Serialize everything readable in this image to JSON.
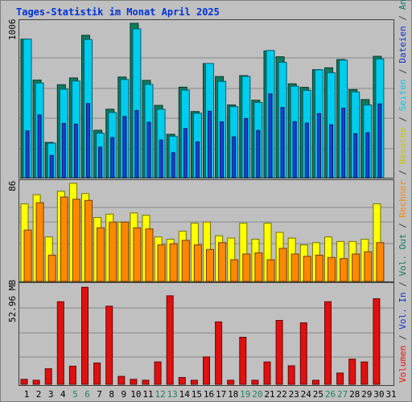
{
  "chart_data": {
    "type": "bar",
    "title": "Tages-Statistik im Monat April 2025",
    "categories": [
      "1",
      "2",
      "3",
      "4",
      "5",
      "6",
      "7",
      "8",
      "9",
      "10",
      "11",
      "12",
      "13",
      "14",
      "15",
      "16",
      "17",
      "18",
      "19",
      "20",
      "21",
      "22",
      "23",
      "24",
      "25",
      "26",
      "27",
      "28",
      "29",
      "30",
      "31"
    ],
    "weekend_days": [
      "5",
      "6",
      "12",
      "13",
      "19",
      "20",
      "26",
      "27"
    ],
    "panels": [
      {
        "name": "top",
        "scale_label": "1006",
        "ylim": [
          0,
          1006
        ],
        "series": [
          {
            "name": "Anfragen",
            "color": "#117a5e",
            "values": [
              903,
              636,
              230,
              606,
              650,
              928,
              309,
              446,
              656,
              1006,
              634,
              471,
              283,
              590,
              431,
              744,
              659,
              474,
              665,
              505,
              826,
              788,
              612,
              589,
              704,
              716,
              770,
              574,
              509,
              791
            ]
          },
          {
            "name": "Dateien",
            "color": "#00ccee",
            "values": [
              903,
              617,
              225,
              577,
              630,
              900,
              290,
              425,
              640,
              970,
              608,
              446,
              270,
              571,
              420,
              744,
              628,
              463,
              660,
              490,
              829,
              752,
              596,
              569,
              703,
              684,
              766,
              559,
              474,
              774
            ]
          },
          {
            "name": "Seiten",
            "color": "#1e3dd4",
            "values": [
              305,
              409,
              145,
              354,
              349,
              483,
              199,
              262,
              399,
              438,
              361,
              245,
              163,
              321,
              233,
              433,
              364,
              266,
              386,
              308,
              547,
              458,
              365,
              356,
              418,
              345,
              453,
              287,
              293,
              481
            ]
          }
        ]
      },
      {
        "name": "middle",
        "scale_label": "86",
        "ylim": [
          0,
          86
        ],
        "series": [
          {
            "name": "Besuche",
            "color": "#ffff00",
            "values": [
              68,
              76,
              39,
              79,
              86,
              77,
              56,
              59,
              52,
              60,
              58,
              39,
              37,
              44,
              51,
              52,
              40,
              38,
              51,
              37,
              51,
              43,
              38,
              32,
              34,
              39,
              35,
              35,
              37,
              68
            ]
          },
          {
            "name": "Rechner",
            "color": "#ff8800",
            "values": [
              45,
              69,
              23,
              74,
              72,
              71,
              47,
              52,
              52,
              47,
              46,
              32,
              33,
              36,
              32,
              28,
              34,
              19,
              24,
              25,
              19,
              29,
              24,
              22,
              23,
              21,
              20,
              24,
              26,
              34
            ]
          }
        ]
      },
      {
        "name": "bottom",
        "scale_label": "52.96 MB",
        "ylim": [
          0,
          52.96
        ],
        "series": [
          {
            "name": "Volumen",
            "color": "#e01010",
            "values": [
              2.7,
              2.2,
              8.4,
              44.6,
              9.8,
              52.4,
              11.5,
              42.2,
              4.3,
              2.7,
              2.2,
              12.1,
              47.8,
              3.7,
              2.2,
              14.8,
              33.7,
              2.2,
              25.4,
              2.2,
              12.1,
              34.5,
              10.0,
              33.2,
              2.2,
              44.6,
              6.1,
              13.6,
              12.1,
              46.2
            ]
          }
        ]
      }
    ],
    "side_legend": [
      {
        "text": "Volumen",
        "color": "#ee1111"
      },
      {
        "text": " / ",
        "color": "#404040"
      },
      {
        "text": "Vol. In",
        "color": "#1133cc"
      },
      {
        "text": " / ",
        "color": "#404040"
      },
      {
        "text": "Vol. Out",
        "color": "#117a5e"
      },
      {
        "text": " / ",
        "color": "#404040"
      },
      {
        "text": "Rechner",
        "color": "#ff8800"
      },
      {
        "text": " / ",
        "color": "#404040"
      },
      {
        "text": "Besuche",
        "color": "#c8c800"
      },
      {
        "text": " / ",
        "color": "#404040"
      },
      {
        "text": "Seiten",
        "color": "#00ccee"
      },
      {
        "text": " / ",
        "color": "#404040"
      },
      {
        "text": "Dateien",
        "color": "#1133cc"
      },
      {
        "text": " / ",
        "color": "#404040"
      },
      {
        "text": "Anfragen",
        "color": "#117a5e"
      }
    ],
    "grid": true,
    "colors": {
      "background": "#c0c0c0",
      "title": "#0033dd",
      "weekday_label": "#000000",
      "weekend_label": "#208060",
      "gridline": "#888888"
    }
  }
}
